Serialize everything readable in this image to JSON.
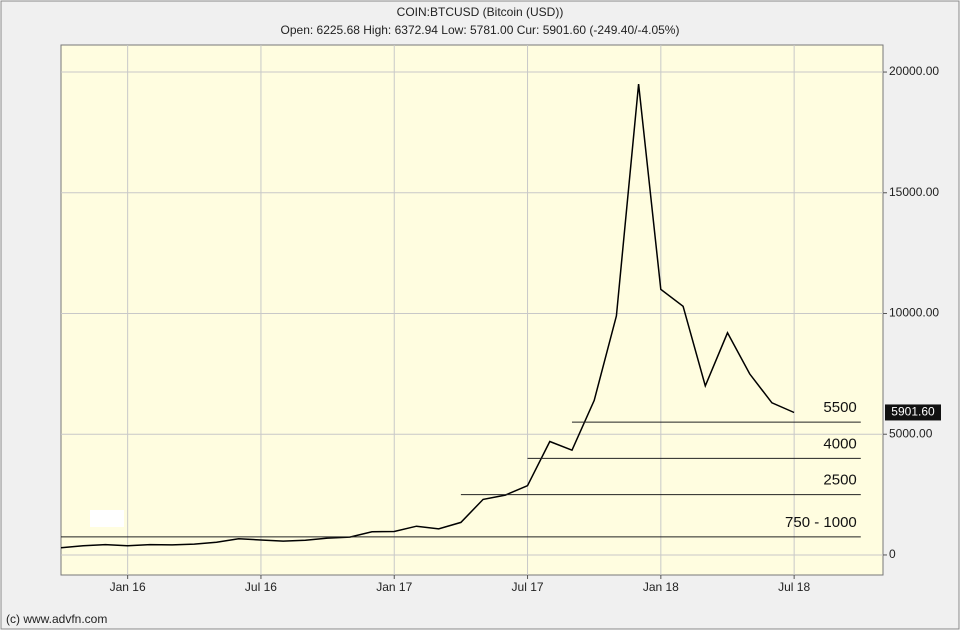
{
  "chart_data": {
    "type": "line",
    "title": "COIN:BTCUSD (Bitcoin (USD))",
    "subtitle": "Open: 6225.68 High: 6372.94 Low: 5781.00 Cur: 5901.60 (-249.40/-4.05%)",
    "footer": "(c) www.advfn.com",
    "x": [
      "2015-10",
      "2015-11",
      "2015-12",
      "2016-01",
      "2016-02",
      "2016-03",
      "2016-04",
      "2016-05",
      "2016-06",
      "2016-07",
      "2016-08",
      "2016-09",
      "2016-10",
      "2016-11",
      "2016-12",
      "2017-01",
      "2017-02",
      "2017-03",
      "2017-04",
      "2017-05",
      "2017-06",
      "2017-07",
      "2017-08",
      "2017-09",
      "2017-10",
      "2017-11",
      "2017-12",
      "2018-01",
      "2018-02",
      "2018-03",
      "2018-04",
      "2018-05",
      "2018-06",
      "2018-07"
    ],
    "values": [
      300,
      380,
      430,
      380,
      430,
      415,
      450,
      530,
      670,
      620,
      575,
      610,
      700,
      740,
      960,
      970,
      1190,
      1080,
      1350,
      2300,
      2480,
      2870,
      4700,
      4340,
      6400,
      9900,
      19500,
      11000,
      10300,
      7000,
      9200,
      7500,
      6300,
      5901.6
    ],
    "color": "#000000",
    "xlim": [
      "2015-10",
      "2018-11"
    ],
    "xticks": [
      {
        "value": "2016-01",
        "label": "Jan 16"
      },
      {
        "value": "2016-07",
        "label": "Jul 16"
      },
      {
        "value": "2017-01",
        "label": "Jan 17"
      },
      {
        "value": "2017-07",
        "label": "Jul 17"
      },
      {
        "value": "2018-01",
        "label": "Jan 18"
      },
      {
        "value": "2018-07",
        "label": "Jul 18"
      }
    ],
    "ylim": [
      -830,
      21120
    ],
    "yticks": [
      0,
      {
        "value": 5000,
        "label": "5000.00"
      },
      {
        "value": 10000,
        "label": "10000.00"
      },
      {
        "value": 15000,
        "label": "15000.00"
      },
      {
        "value": 20000,
        "label": "20000.00"
      }
    ],
    "grid": true,
    "current": {
      "value": 5901.6,
      "label": "5901.60"
    },
    "levels": [
      {
        "label": "5500",
        "value": 5500,
        "start": "2017-09",
        "end": "2018-10"
      },
      {
        "label": "4000",
        "value": 4000,
        "start": "2017-07",
        "end": "2018-10"
      },
      {
        "label": "2500",
        "value": 2500,
        "start": "2017-04",
        "end": "2018-10"
      },
      {
        "label": "750 - 1000",
        "value": 750,
        "start": "2015-10",
        "end": "2018-10"
      }
    ]
  }
}
